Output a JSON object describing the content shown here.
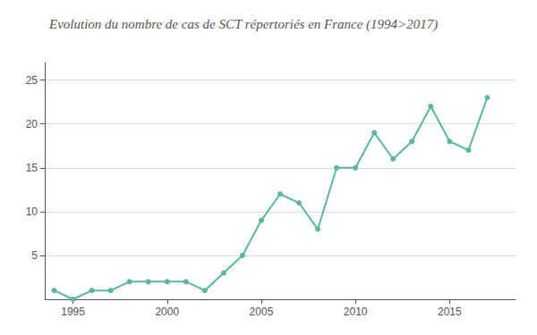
{
  "chart_data": {
    "type": "line",
    "title": "Evolution du nombre de cas de SCT répertoriés en France (1994>2017)",
    "x": [
      1994,
      1995,
      1996,
      1997,
      1998,
      1999,
      2000,
      2001,
      2002,
      2003,
      2004,
      2005,
      2006,
      2007,
      2008,
      2009,
      2010,
      2011,
      2012,
      2013,
      2014,
      2015,
      2016,
      2017
    ],
    "values": [
      1,
      0,
      1,
      1,
      2,
      2,
      2,
      2,
      1,
      3,
      5,
      9,
      12,
      11,
      8,
      15,
      15,
      19,
      16,
      18,
      22,
      18,
      17,
      23
    ],
    "color": "#5ab5a5",
    "xlim": [
      1993.5,
      2018.5
    ],
    "xticks": [
      1995,
      2000,
      2005,
      2010,
      2015
    ],
    "ylim": [
      0,
      27
    ],
    "yticks": [
      5,
      10,
      15,
      20,
      25
    ],
    "grid": true
  }
}
